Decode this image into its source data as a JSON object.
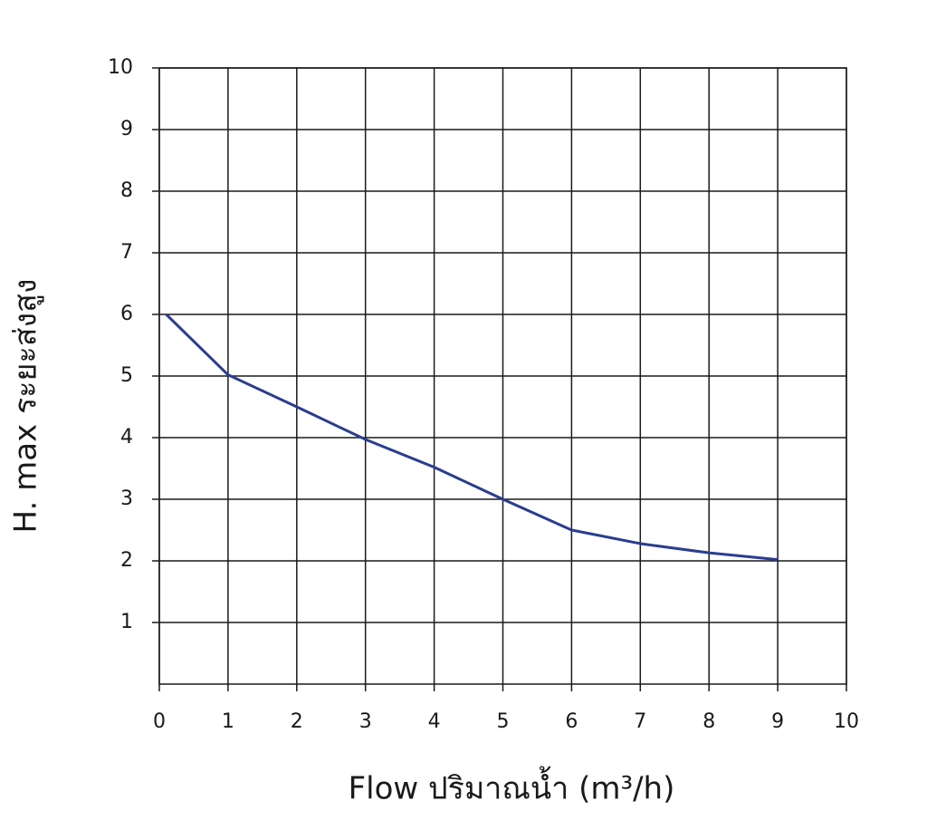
{
  "chart_data": {
    "type": "line",
    "x_label": "Flow  ปริมาณน้ำ (m³/h)",
    "y_label": "H. max  ระยะส่งสูง",
    "series": [
      {
        "name": "H. max",
        "color": "#2a3d8f",
        "x": [
          0.1,
          1,
          2,
          3,
          4,
          5,
          6,
          7,
          8,
          9
        ],
        "values": [
          6,
          5.02,
          4.5,
          3.97,
          3.52,
          3.0,
          2.5,
          2.28,
          2.13,
          2.02
        ]
      }
    ],
    "xlim": [
      0,
      10
    ],
    "xticks": [
      0,
      1,
      2,
      3,
      4,
      5,
      6,
      7,
      8,
      9,
      10
    ],
    "ylim": [
      0,
      10
    ],
    "yticks": [
      1,
      2,
      3,
      4,
      5,
      6,
      7,
      8,
      9,
      10
    ],
    "grid": true
  }
}
